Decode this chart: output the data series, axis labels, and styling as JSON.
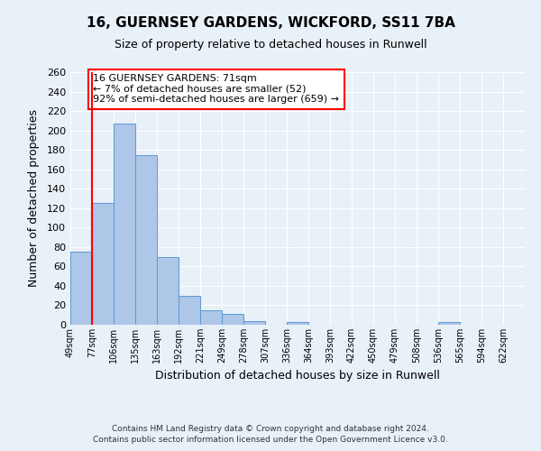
{
  "title": "16, GUERNSEY GARDENS, WICKFORD, SS11 7BA",
  "subtitle": "Size of property relative to detached houses in Runwell",
  "xlabel": "Distribution of detached houses by size in Runwell",
  "ylabel": "Number of detached properties",
  "bin_labels": [
    "49sqm",
    "77sqm",
    "106sqm",
    "135sqm",
    "163sqm",
    "192sqm",
    "221sqm",
    "249sqm",
    "278sqm",
    "307sqm",
    "336sqm",
    "364sqm",
    "393sqm",
    "422sqm",
    "450sqm",
    "479sqm",
    "508sqm",
    "536sqm",
    "565sqm",
    "594sqm",
    "622sqm"
  ],
  "bar_values": [
    75,
    125,
    207,
    175,
    70,
    30,
    15,
    11,
    4,
    0,
    3,
    0,
    0,
    0,
    0,
    0,
    0,
    3,
    0,
    0,
    0
  ],
  "bar_color": "#aec6e8",
  "bar_edge_color": "#5b9bd5",
  "background_color": "#e8f0f8",
  "grid_color": "#ffffff",
  "marker_line_color": "#ff0000",
  "annotation_box_text": "16 GUERNSEY GARDENS: 71sqm\n← 7% of detached houses are smaller (52)\n92% of semi-detached houses are larger (659) →",
  "annotation_box_edge_color": "#ff0000",
  "ylim": [
    0,
    260
  ],
  "yticks": [
    0,
    20,
    40,
    60,
    80,
    100,
    120,
    140,
    160,
    180,
    200,
    220,
    240,
    260
  ],
  "footer_line1": "Contains HM Land Registry data © Crown copyright and database right 2024.",
  "footer_line2": "Contains public sector information licensed under the Open Government Licence v3.0."
}
